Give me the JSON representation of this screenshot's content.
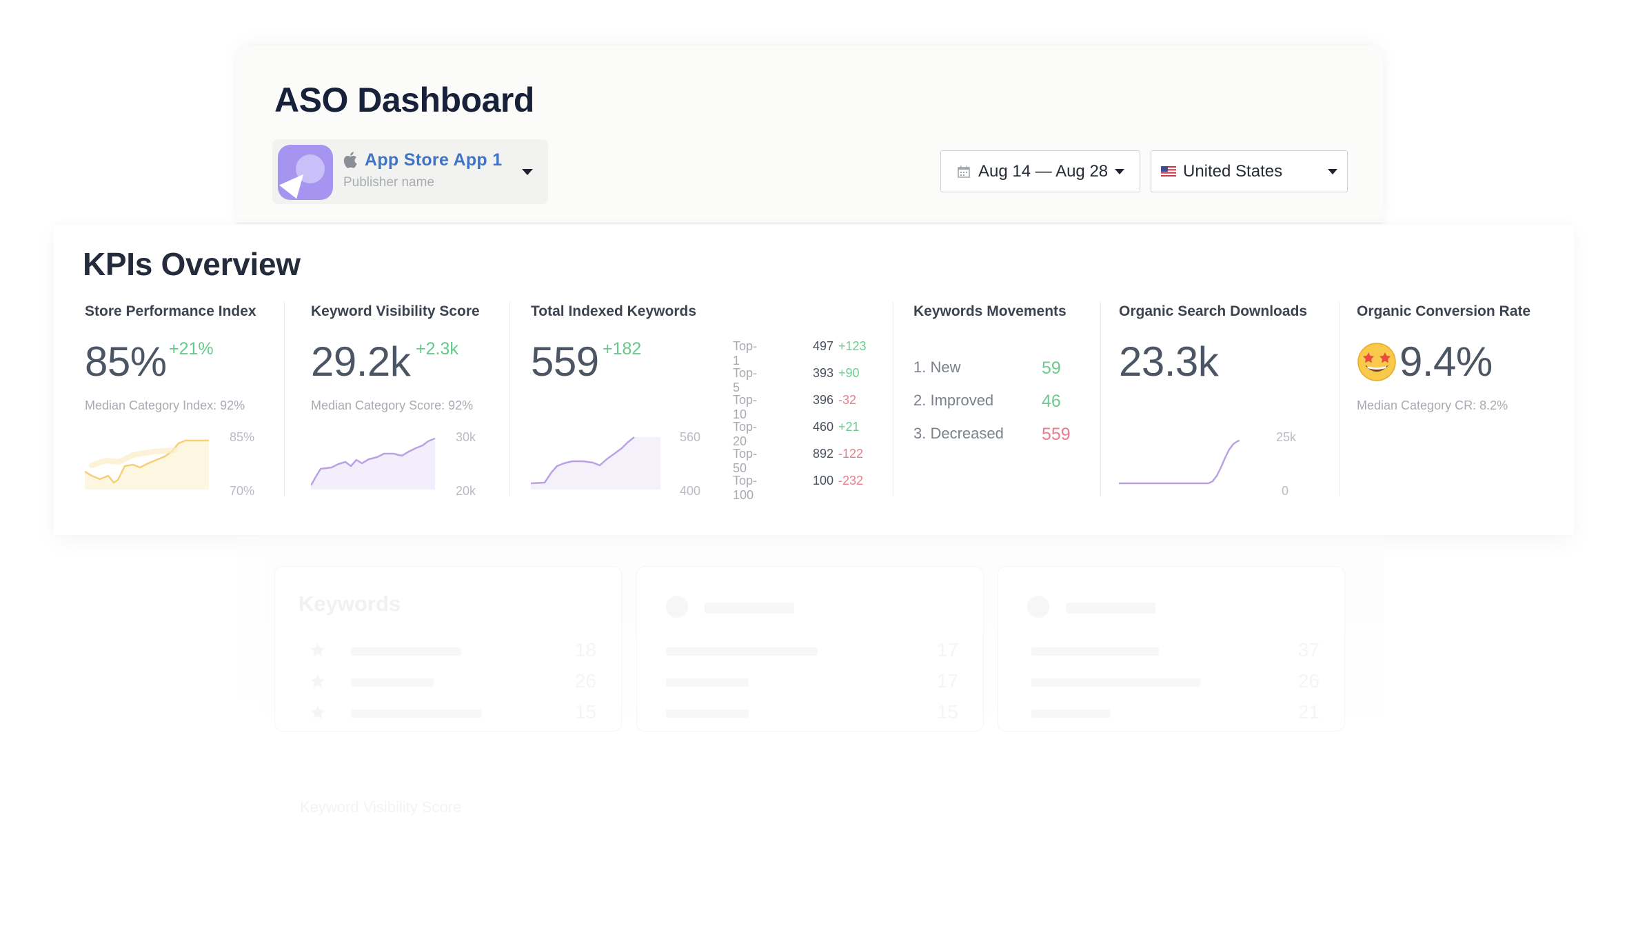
{
  "header": {
    "title": "ASO Dashboard",
    "app": {
      "name": "App Store App 1",
      "publisher": "Publisher name",
      "icon": "apple-icon",
      "accent": "#3f74c6"
    },
    "date_range": "Aug 14 — Aug 28",
    "country": "United States"
  },
  "kpis": {
    "title": "KPIs Overview",
    "store_performance": {
      "title": "Store Performance Index",
      "value": "85%",
      "delta": "+21%",
      "sub": "Median Category Index: 92%",
      "axis_max": "85%",
      "axis_min": "70%"
    },
    "visibility": {
      "title": "Keyword Visibility Score",
      "value": "29.2k",
      "delta": "+2.3k",
      "sub": "Median Category Score: 92%",
      "axis_max": "30k",
      "axis_min": "20k"
    },
    "indexed": {
      "title": "Total Indexed Keywords",
      "value": "559",
      "delta": "+182",
      "axis_max": "560",
      "axis_min": "400",
      "tops": [
        {
          "label": "Top-1",
          "value": "497",
          "delta": "+123"
        },
        {
          "label": "Top-5",
          "value": "393",
          "delta": "+90"
        },
        {
          "label": "Top-10",
          "value": "396",
          "delta": "-32"
        },
        {
          "label": "Top-20",
          "value": "460",
          "delta": "+21"
        },
        {
          "label": "Top-50",
          "value": "892",
          "delta": "-122"
        },
        {
          "label": "Top-100",
          "value": "100",
          "delta": "-232"
        }
      ]
    },
    "movements": {
      "title": "Keywords Movements",
      "rows": [
        {
          "label": "1.  New",
          "value": "59"
        },
        {
          "label": "2.  Improved",
          "value": "46"
        },
        {
          "label": "3.  Decreased",
          "value": "559"
        }
      ]
    },
    "downloads": {
      "title": "Organic Search Downloads",
      "value": "23.3k",
      "axis_max": "25k",
      "axis_min": "0"
    },
    "conversion": {
      "title": "Organic Conversion Rate",
      "value": "9.4%",
      "sub": "Median Category CR: 8.2%",
      "icon": "star-struck-emoji-icon"
    }
  },
  "keywords_section": {
    "title": "Keywords",
    "cards": [
      {
        "numbers": [
          "18",
          "26",
          "15"
        ]
      },
      {
        "numbers": [
          "17",
          "17",
          "15"
        ]
      },
      {
        "numbers": [
          "37",
          "26",
          "21"
        ]
      }
    ],
    "caption": "Keyword Visibility Score"
  },
  "colors": {
    "positive": "#6ccb8f",
    "negative": "#ea7d8d",
    "sparkline_purple": "#b9a2e3",
    "sparkline_yellow": "#f5d27a"
  }
}
